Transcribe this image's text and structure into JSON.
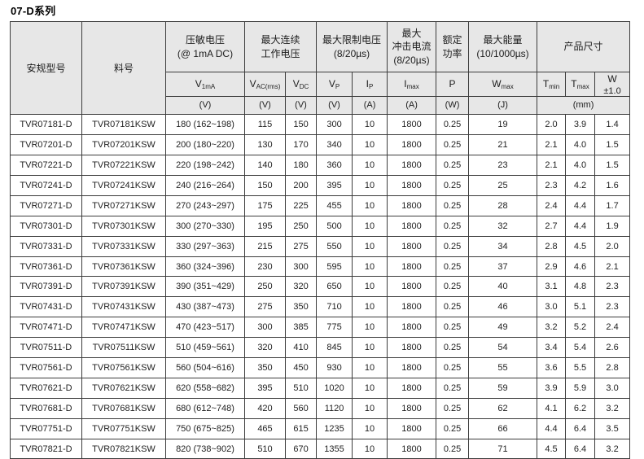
{
  "page_title": "07-D系列",
  "table": {
    "groups": {
      "safety_model": "安规型号",
      "part_number": "料号",
      "varistor_voltage": "压敏电压\n(@ 1mA DC)",
      "max_continuous_voltage": "最大连续\n工作电压",
      "max_clamping_voltage": "最大限制电压\n(8/20µs)",
      "max_surge_current": "最大\n冲击电流\n(8/20µs)",
      "rated_power": "额定\n功率",
      "max_energy": "最大能量\n(10/1000µs)",
      "dimensions": "产品尺寸"
    },
    "symbols": [
      {
        "base": "V",
        "sub": "1mA",
        "line2": ""
      },
      {
        "base": "V",
        "sub": "AC(rms)",
        "line2": ""
      },
      {
        "base": "V",
        "sub": "DC",
        "line2": ""
      },
      {
        "base": "V",
        "sub": "P",
        "line2": ""
      },
      {
        "base": "I",
        "sub": "P",
        "line2": ""
      },
      {
        "base": "I",
        "sub": "max",
        "line2": ""
      },
      {
        "base": "P",
        "sub": "",
        "line2": ""
      },
      {
        "base": "W",
        "sub": "max",
        "line2": ""
      },
      {
        "base": "T",
        "sub": "min",
        "line2": ""
      },
      {
        "base": "T",
        "sub": "max",
        "line2": ""
      },
      {
        "base": "W",
        "sub": "",
        "line2": "±1.0"
      }
    ],
    "units": {
      "v1ma": "(V)",
      "vac": "(V)",
      "vdc": "(V)",
      "vp": "(V)",
      "ip": "(A)",
      "imax": "(A)",
      "p": "(W)",
      "wmax": "(J)",
      "dims": "(mm)"
    },
    "col_names": [
      "safety-model-cell",
      "part-number-cell",
      "v1ma-cell",
      "vac-rms-cell",
      "vdc-cell",
      "vp-cell",
      "ip-cell",
      "imax-cell",
      "p-cell",
      "wmax-cell",
      "tmin-cell",
      "tmax-cell",
      "w-cell"
    ],
    "rows": [
      [
        "TVR07181-D",
        "TVR07181KSW",
        "180 (162~198)",
        "115",
        "150",
        "300",
        "10",
        "1800",
        "0.25",
        "19",
        "2.0",
        "3.9",
        "1.4"
      ],
      [
        "TVR07201-D",
        "TVR07201KSW",
        "200 (180~220)",
        "130",
        "170",
        "340",
        "10",
        "1800",
        "0.25",
        "21",
        "2.1",
        "4.0",
        "1.5"
      ],
      [
        "TVR07221-D",
        "TVR07221KSW",
        "220 (198~242)",
        "140",
        "180",
        "360",
        "10",
        "1800",
        "0.25",
        "23",
        "2.1",
        "4.0",
        "1.5"
      ],
      [
        "TVR07241-D",
        "TVR07241KSW",
        "240 (216~264)",
        "150",
        "200",
        "395",
        "10",
        "1800",
        "0.25",
        "25",
        "2.3",
        "4.2",
        "1.6"
      ],
      [
        "TVR07271-D",
        "TVR07271KSW",
        "270 (243~297)",
        "175",
        "225",
        "455",
        "10",
        "1800",
        "0.25",
        "28",
        "2.4",
        "4.4",
        "1.7"
      ],
      [
        "TVR07301-D",
        "TVR07301KSW",
        "300 (270~330)",
        "195",
        "250",
        "500",
        "10",
        "1800",
        "0.25",
        "32",
        "2.7",
        "4.4",
        "1.9"
      ],
      [
        "TVR07331-D",
        "TVR07331KSW",
        "330 (297~363)",
        "215",
        "275",
        "550",
        "10",
        "1800",
        "0.25",
        "34",
        "2.8",
        "4.5",
        "2.0"
      ],
      [
        "TVR07361-D",
        "TVR07361KSW",
        "360 (324~396)",
        "230",
        "300",
        "595",
        "10",
        "1800",
        "0.25",
        "37",
        "2.9",
        "4.6",
        "2.1"
      ],
      [
        "TVR07391-D",
        "TVR07391KSW",
        "390 (351~429)",
        "250",
        "320",
        "650",
        "10",
        "1800",
        "0.25",
        "40",
        "3.1",
        "4.8",
        "2.3"
      ],
      [
        "TVR07431-D",
        "TVR07431KSW",
        "430 (387~473)",
        "275",
        "350",
        "710",
        "10",
        "1800",
        "0.25",
        "46",
        "3.0",
        "5.1",
        "2.3"
      ],
      [
        "TVR07471-D",
        "TVR07471KSW",
        "470 (423~517)",
        "300",
        "385",
        "775",
        "10",
        "1800",
        "0.25",
        "49",
        "3.2",
        "5.2",
        "2.4"
      ],
      [
        "TVR07511-D",
        "TVR07511KSW",
        "510 (459~561)",
        "320",
        "410",
        "845",
        "10",
        "1800",
        "0.25",
        "54",
        "3.4",
        "5.4",
        "2.6"
      ],
      [
        "TVR07561-D",
        "TVR07561KSW",
        "560 (504~616)",
        "350",
        "450",
        "930",
        "10",
        "1800",
        "0.25",
        "55",
        "3.6",
        "5.5",
        "2.8"
      ],
      [
        "TVR07621-D",
        "TVR07621KSW",
        "620 (558~682)",
        "395",
        "510",
        "1020",
        "10",
        "1800",
        "0.25",
        "59",
        "3.9",
        "5.9",
        "3.0"
      ],
      [
        "TVR07681-D",
        "TVR07681KSW",
        "680 (612~748)",
        "420",
        "560",
        "1120",
        "10",
        "1800",
        "0.25",
        "62",
        "4.1",
        "6.2",
        "3.2"
      ],
      [
        "TVR07751-D",
        "TVR07751KSW",
        "750 (675~825)",
        "465",
        "615",
        "1235",
        "10",
        "1800",
        "0.25",
        "66",
        "4.4",
        "6.4",
        "3.5"
      ],
      [
        "TVR07821-D",
        "TVR07821KSW",
        "820 (738~902)",
        "510",
        "670",
        "1355",
        "10",
        "1800",
        "0.25",
        "71",
        "4.5",
        "6.4",
        "3.2"
      ]
    ]
  },
  "colors": {
    "header_bg": "#e7e7e7",
    "border": "#3c3c3c",
    "text": "#1d1d1d"
  }
}
